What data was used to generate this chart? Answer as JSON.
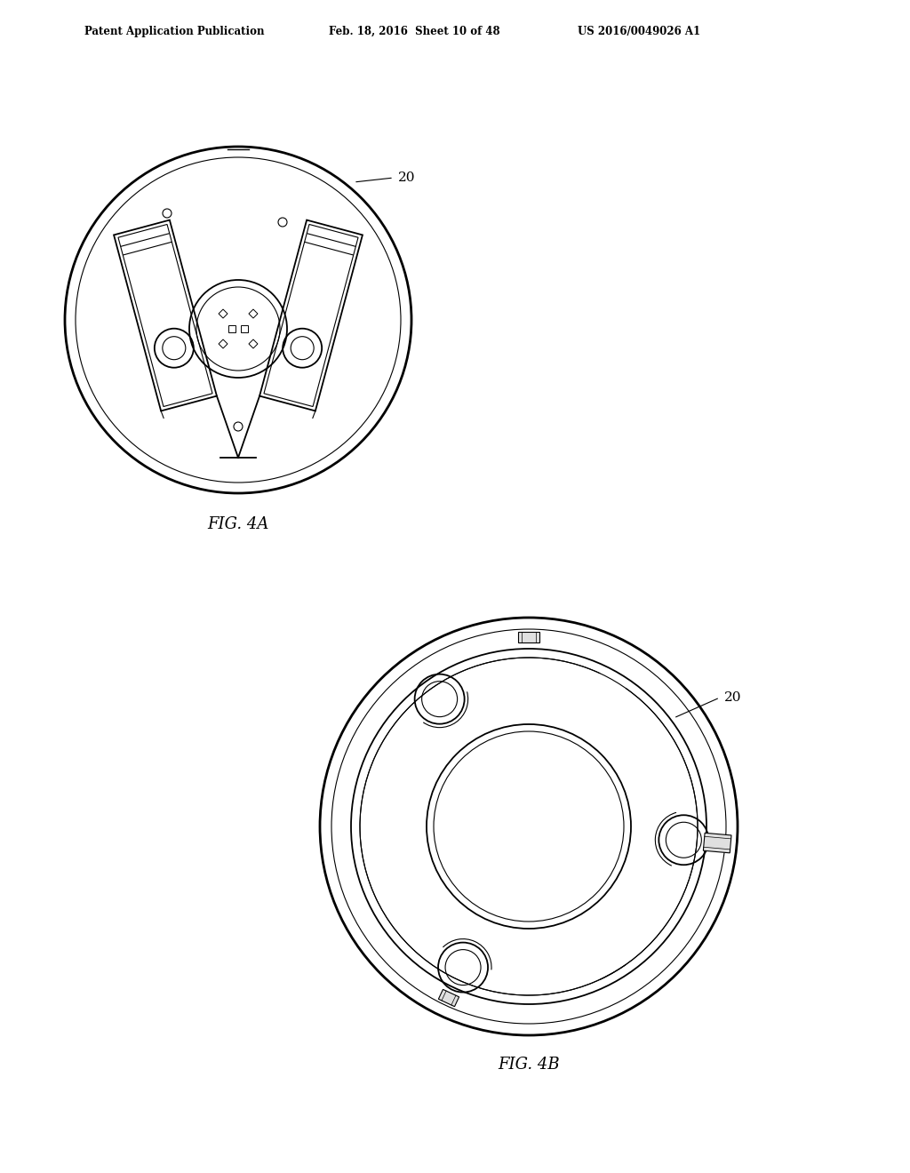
{
  "bg_color": "#ffffff",
  "line_color": "#000000",
  "header_text1": "Patent Application Publication",
  "header_text2": "Feb. 18, 2016  Sheet 10 of 48",
  "header_text3": "US 2016/0049026 A1",
  "fig4a_label": "FIG. 4A",
  "fig4b_label": "FIG. 4B",
  "label_20": "20"
}
